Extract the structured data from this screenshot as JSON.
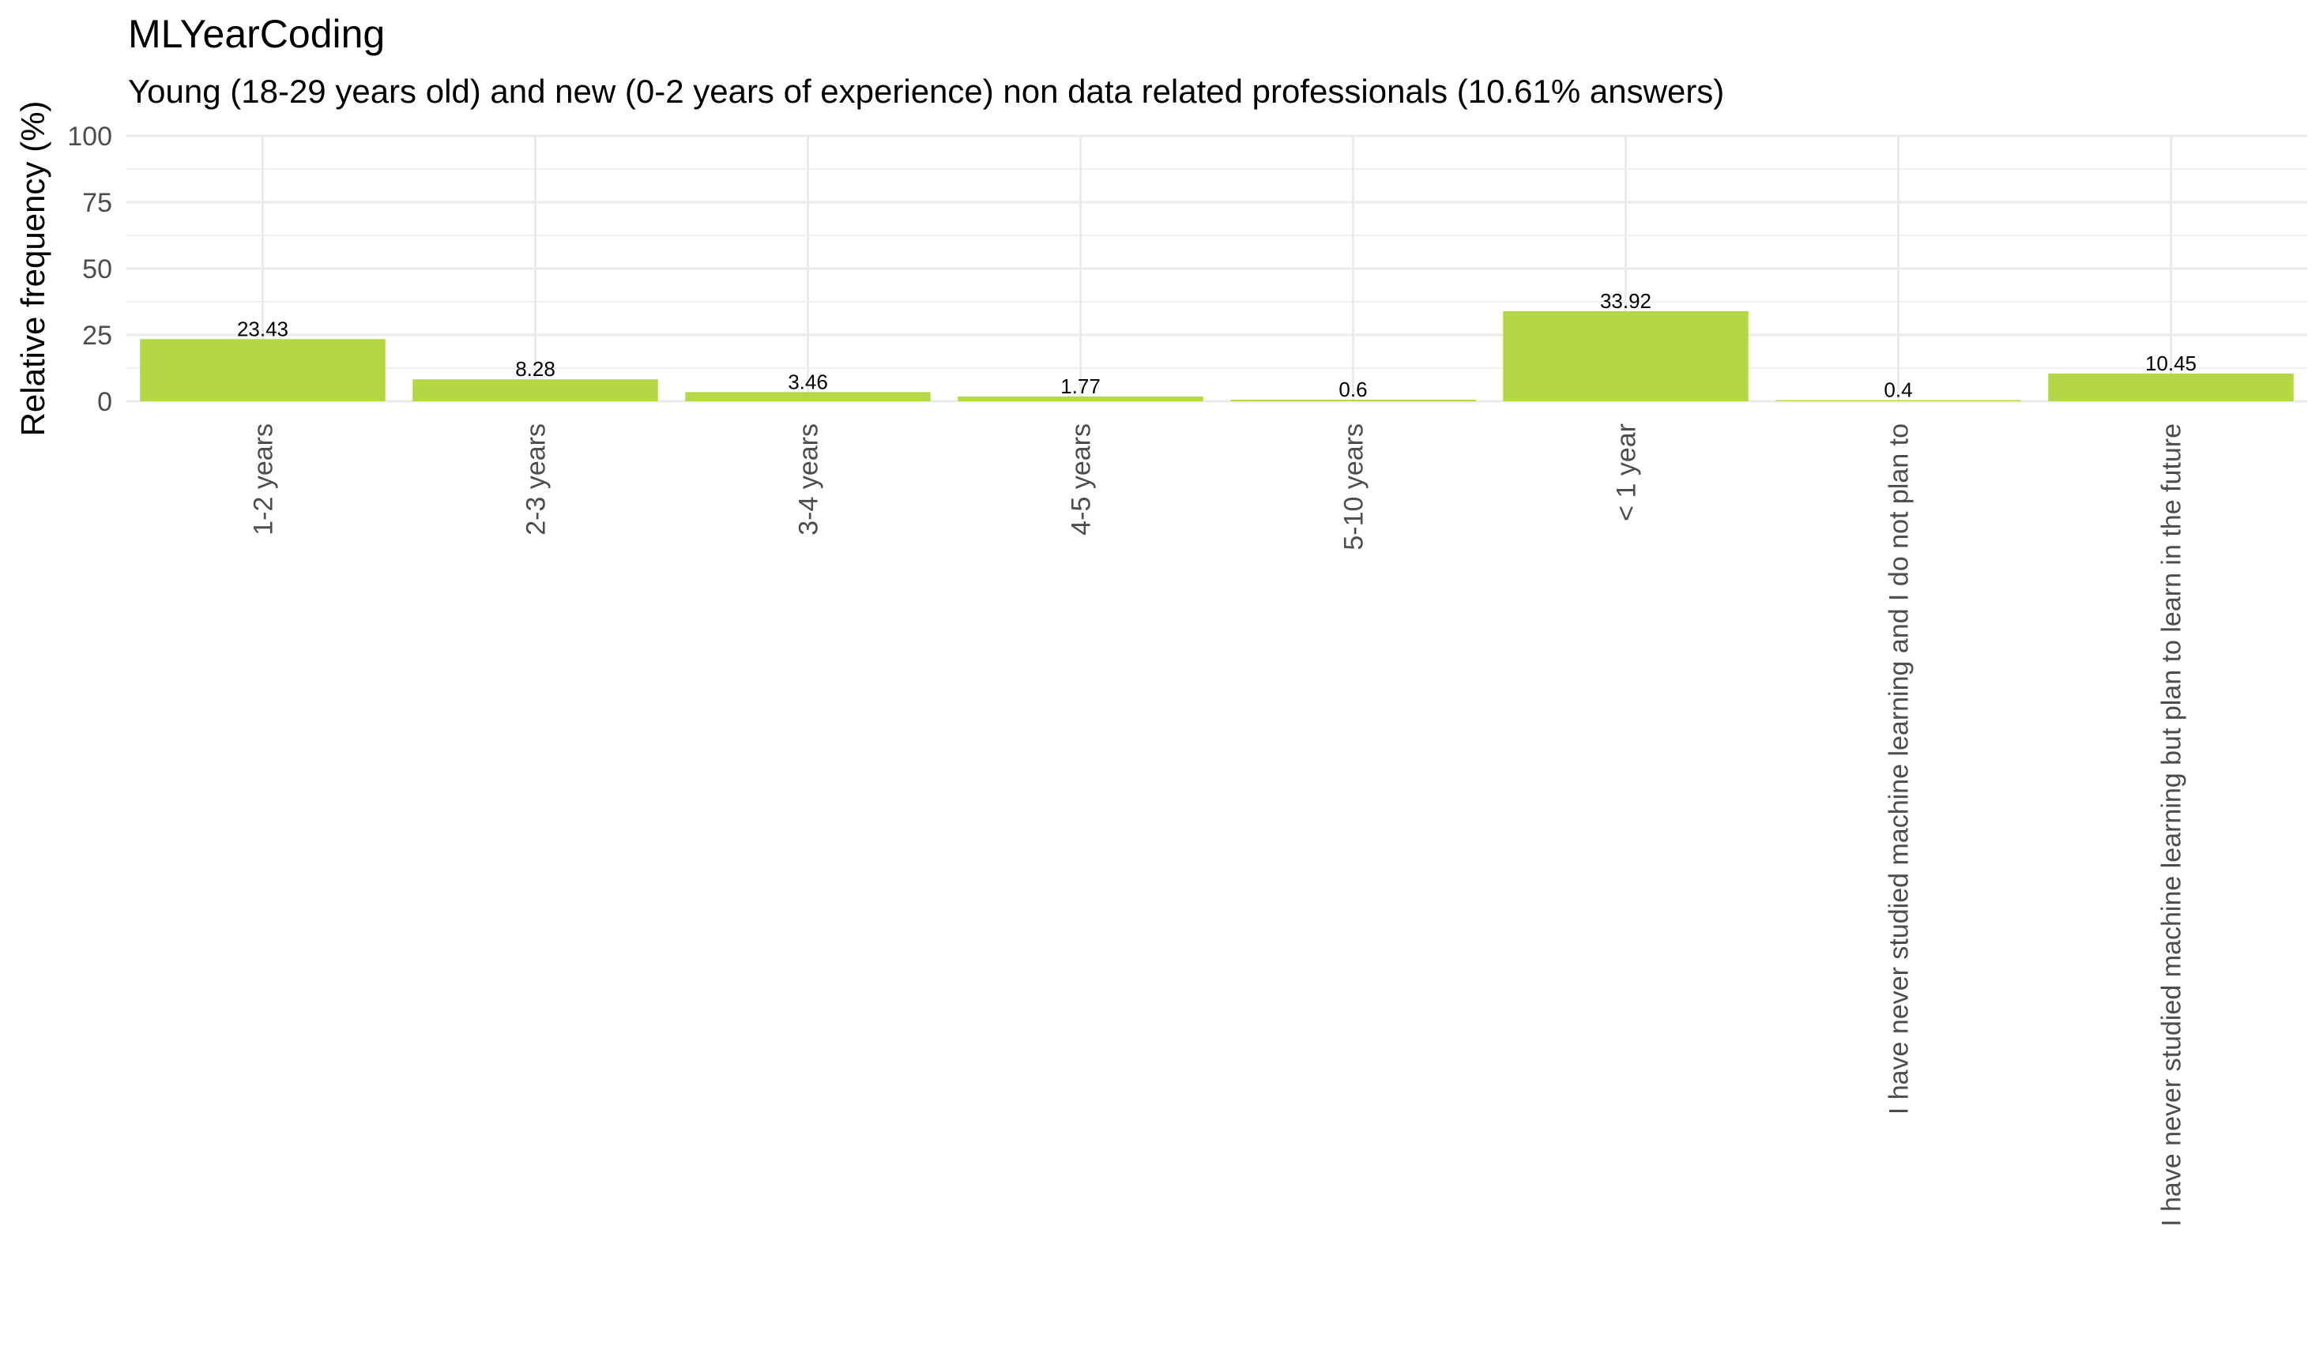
{
  "chart_data": {
    "type": "bar",
    "title": "MLYearCoding",
    "subtitle": "Young (18-29 years old) and new (0-2 years of experience) non data related professionals (10.61% answers)",
    "xlabel": "",
    "ylabel": "Relative frequency (%)",
    "ylim": [
      0,
      100
    ],
    "yticks": [
      0,
      25,
      50,
      75,
      100
    ],
    "grid": true,
    "bar_color": "#b3d843",
    "categories": [
      "1-2 years",
      "2-3 years",
      "3-4 years",
      "4-5 years",
      "5-10 years",
      "< 1 year",
      "I have never studied machine learning and I do not plan to",
      "I have never studied machine learning but plan to learn in the future"
    ],
    "values": [
      23.43,
      8.28,
      3.46,
      1.77,
      0.6,
      33.92,
      0.4,
      10.45
    ],
    "data_labels": [
      "23.43",
      "8.28",
      "3.46",
      "1.77",
      "0.6",
      "33.92",
      "0.4",
      "10.45"
    ]
  }
}
